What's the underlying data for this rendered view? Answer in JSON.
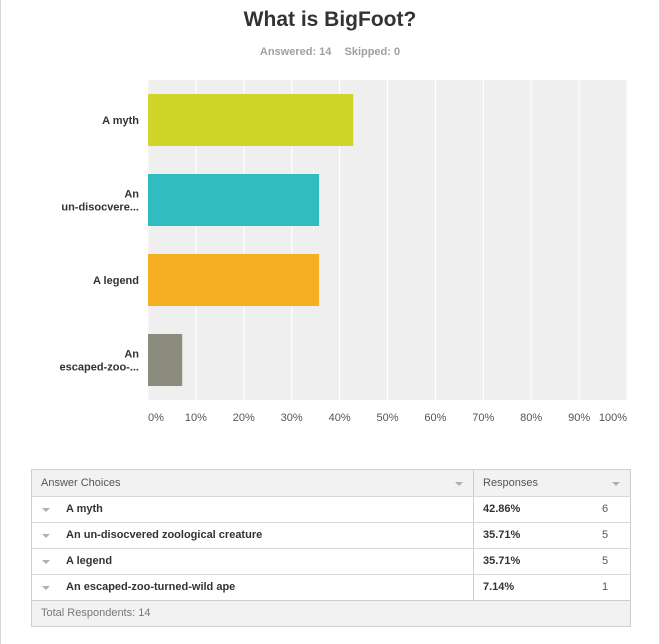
{
  "title": "What is BigFoot?",
  "answered": "Answered: 14",
  "skipped": "Skipped: 0",
  "chart_data": {
    "type": "bar",
    "orientation": "horizontal",
    "categories": [
      "A myth",
      "An un-disocvered...",
      "A legend",
      "An escaped-zoo-..."
    ],
    "category_lines": [
      [
        "A myth"
      ],
      [
        "An",
        "un-disocvere..."
      ],
      [
        "A legend"
      ],
      [
        "An",
        "escaped-zoo-..."
      ]
    ],
    "values": [
      42.86,
      35.71,
      35.71,
      7.14
    ],
    "colors": [
      "#cfd629",
      "#31bdbf",
      "#f6ae23",
      "#8c8c7e"
    ],
    "x_ticks": [
      "0%",
      "10%",
      "20%",
      "30%",
      "40%",
      "50%",
      "60%",
      "70%",
      "80%",
      "90%",
      "100%"
    ],
    "xlim": [
      0,
      100
    ],
    "grid": true
  },
  "table": {
    "headers": [
      "Answer Choices",
      "Responses"
    ],
    "rows": [
      {
        "choice": "A myth",
        "pct": "42.86%",
        "count": "6"
      },
      {
        "choice": "An un-disocvered zoological creature",
        "pct": "35.71%",
        "count": "5"
      },
      {
        "choice": "A legend",
        "pct": "35.71%",
        "count": "5"
      },
      {
        "choice": "An escaped-zoo-turned-wild ape",
        "pct": "7.14%",
        "count": "1"
      }
    ],
    "footer": "Total Respondents: 14"
  },
  "colors": {
    "plot_background": "#efefef",
    "gridline": "#ffffff",
    "header_background": "#f2f2f2"
  },
  "icons": {
    "sort": "sort-triangle-icon",
    "row_menu": "dropdown-triangle-icon"
  }
}
